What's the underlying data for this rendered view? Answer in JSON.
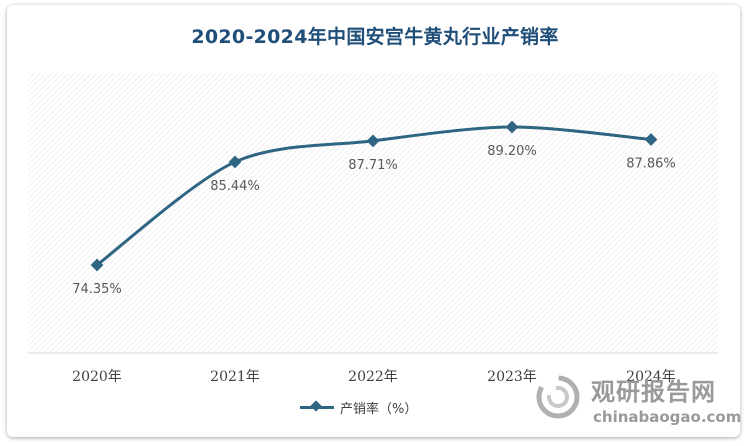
{
  "title": "2020-2024年中国安宫牛黄丸行业产销率",
  "legend": {
    "label": "产销率（%）"
  },
  "watermark": {
    "cn": "观研报告网",
    "en": "chinabaogao.com"
  },
  "colors": {
    "series": "#2e6583",
    "title": "#1f4e79"
  },
  "chart_data": {
    "type": "line",
    "title": "2020-2024年中国安宫牛黄丸行业产销率",
    "categories": [
      "2020年",
      "2021年",
      "2022年",
      "2023年",
      "2024年"
    ],
    "series": [
      {
        "name": "产销率（%）",
        "values": [
          74.35,
          85.44,
          87.71,
          89.2,
          87.86
        ],
        "labels": [
          "74.35%",
          "85.44%",
          "87.71%",
          "89.20%",
          "87.86%"
        ]
      }
    ],
    "ylim": [
      60,
      100
    ],
    "grid": false,
    "smooth": true,
    "legend_position": "bottom"
  }
}
